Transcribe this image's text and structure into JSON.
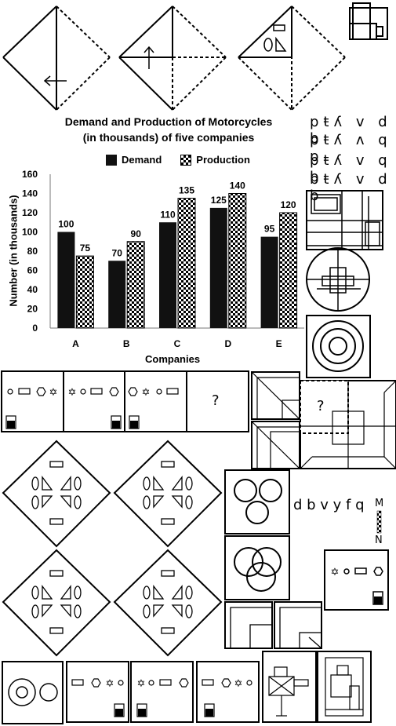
{
  "chart_data": {
    "type": "bar",
    "title": "Demand and Production of Motorcycles (in thousands) of five companies",
    "title_line1": "Demand and Production of Motorcycles",
    "title_line2": "(in thousands) of five companies",
    "categories": [
      "A",
      "B",
      "C",
      "D",
      "E"
    ],
    "series": [
      {
        "name": "Demand",
        "values": [
          100,
          70,
          110,
          125,
          95
        ]
      },
      {
        "name": "Production",
        "values": [
          75,
          90,
          135,
          140,
          120
        ]
      }
    ],
    "xlabel": "Companies",
    "ylabel": "Number (in thousands)",
    "ylim": [
      0,
      160
    ],
    "yticks": [
      0,
      20,
      40,
      60,
      80,
      100,
      120,
      140,
      160
    ],
    "legend": "top"
  },
  "letter_rows": [
    "pŧʎ v d b",
    "pŧʎ ʌ q p",
    "pŧʎ v q b",
    "bŧʎ v d b"
  ],
  "question_mark": "?",
  "mirror_word": "d b v y f q",
  "mirror_top": "M",
  "mirror_bottom": "N"
}
